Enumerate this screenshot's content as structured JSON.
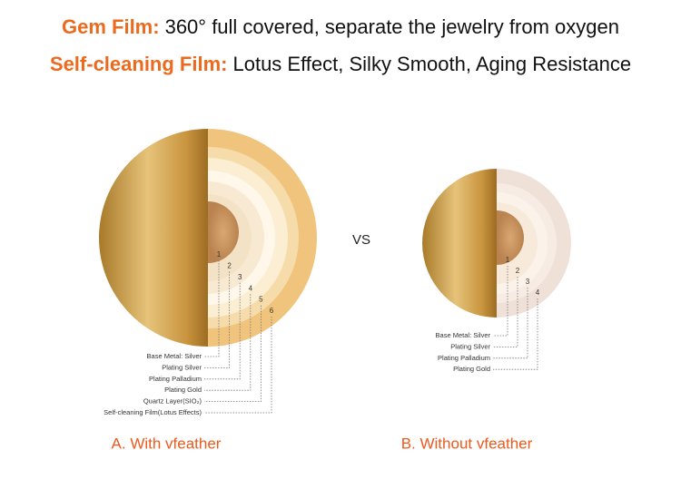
{
  "header": {
    "lines": [
      {
        "label": "Gem Film:",
        "text": "360° full covered, separate the jewelry from oxygen"
      },
      {
        "label": "Self-cleaning Film:",
        "text": "Lotus Effect, Silky Smooth, Aging Resistance"
      }
    ]
  },
  "vs": "VS",
  "diagrams": [
    {
      "numbers": [
        1,
        2,
        3,
        4,
        5,
        6
      ],
      "layers": [
        "Base Metal: Silver",
        "Plating Silver",
        "Plating Palladium",
        "Plating Gold",
        "Quartz Layer(SIO₂)",
        "Self-cleaning Film(Lotus Effects)"
      ],
      "caption": "A. With vfeather"
    },
    {
      "numbers": [
        1,
        2,
        3,
        4
      ],
      "layers": [
        "Base Metal: Silver",
        "Plating Silver",
        "Plating Palladium",
        "Plating Gold"
      ],
      "caption": "B. Without vfeather"
    }
  ]
}
